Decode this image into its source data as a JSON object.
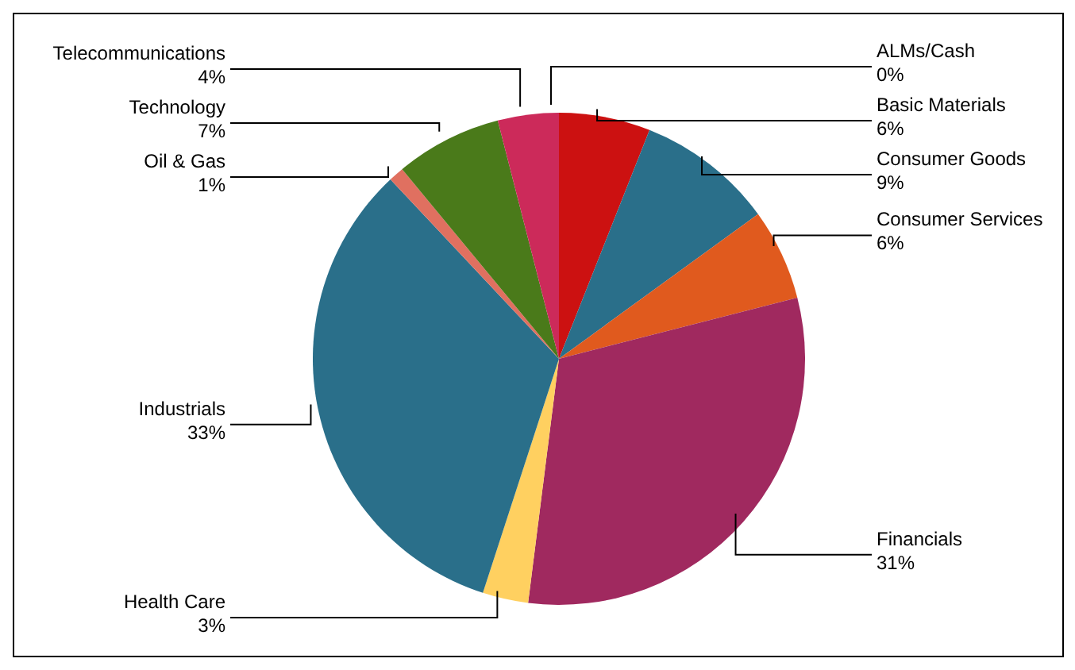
{
  "chart_data": {
    "type": "pie",
    "categories": [
      "ALMs/Cash",
      "Basic Materials",
      "Consumer Goods",
      "Consumer Services",
      "Financials",
      "Health Care",
      "Industrials",
      "Oil & Gas",
      "Technology",
      "Telecommunications"
    ],
    "values": [
      0,
      6,
      9,
      6,
      31,
      3,
      33,
      1,
      7,
      4
    ],
    "value_labels": [
      "0%",
      "6%",
      "9%",
      "6%",
      "31%",
      "3%",
      "33%",
      "1%",
      "7%",
      "4%"
    ],
    "colors": [
      "#8a1a1a",
      "#cc1111",
      "#2a6f8a",
      "#e05a1e",
      "#a0295f",
      "#ffd060",
      "#2a6f8a",
      "#e07060",
      "#4a7a1a",
      "#cc2a5a"
    ],
    "legend": false
  }
}
